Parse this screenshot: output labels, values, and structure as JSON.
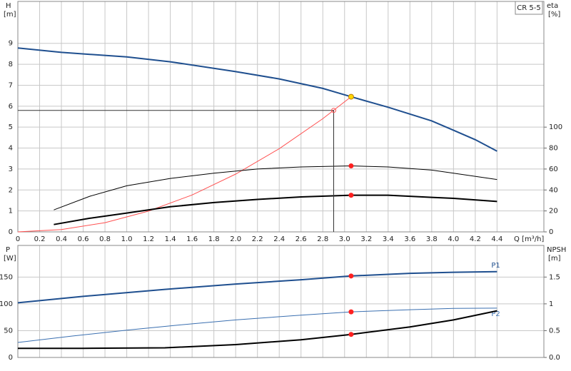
{
  "chart_data": [
    {
      "type": "line",
      "title": "CR 5-5",
      "xlabel": "Q [m³/h]",
      "ylabel": "H",
      "yunit": "[m]",
      "y2label": "eta",
      "y2unit": "[%]",
      "xlim": [
        0,
        4.83
      ],
      "ylim": [
        0,
        11
      ],
      "y2lim": [
        0,
        220
      ],
      "grid": true,
      "xtick_labels": true,
      "xticks": [
        0,
        0.2,
        0.4,
        0.6,
        0.8,
        {
          "value": 1,
          "label": "1.0"
        },
        1.2,
        1.4,
        1.6,
        1.8,
        {
          "value": 2,
          "label": "2.0"
        },
        2.2,
        2.4,
        2.6,
        2.8,
        {
          "value": 3,
          "label": "3.0"
        },
        3.2,
        3.4,
        3.6,
        3.8,
        {
          "value": 4,
          "label": "4.0"
        },
        4.2,
        4.4
      ],
      "yticks": [
        0,
        1,
        2,
        3,
        4,
        5,
        6,
        7,
        8,
        9
      ],
      "y2ticks": [
        0,
        20,
        40,
        60,
        80,
        100
      ],
      "series": [
        {
          "color": "#1f4f8f",
          "line_width": 2,
          "axis": "y",
          "x": [
            0,
            0.4,
            1.0,
            1.4,
            2.0,
            2.4,
            2.8,
            3.06,
            3.4,
            3.8,
            4.0,
            4.2,
            4.4
          ],
          "values": [
            8.78,
            8.57,
            8.35,
            8.12,
            7.65,
            7.3,
            6.85,
            6.45,
            5.95,
            5.3,
            4.85,
            4.4,
            3.85
          ]
        },
        {
          "color": "#ff5050",
          "line_width": 1,
          "axis": "y",
          "x": [
            0,
            0.4,
            0.8,
            1.2,
            1.6,
            2.0,
            2.4,
            2.8,
            3.06
          ],
          "values": [
            0,
            0.11,
            0.44,
            0.99,
            1.76,
            2.76,
            3.97,
            5.4,
            6.45
          ]
        },
        {
          "color": "#000000",
          "line_width": 1,
          "axis": "y2",
          "x": [
            0.33,
            0.66,
            1.0,
            1.4,
            1.8,
            2.2,
            2.6,
            3.06,
            3.4,
            3.8,
            4.0,
            4.4
          ],
          "values": [
            21,
            34,
            44,
            51,
            56,
            60,
            62,
            63,
            62,
            59,
            56,
            50
          ]
        },
        {
          "color": "#000000",
          "line_width": 2,
          "axis": "y2",
          "x": [
            0.33,
            0.66,
            1.0,
            1.4,
            1.8,
            2.2,
            2.6,
            3.06,
            3.4,
            3.8,
            4.0,
            4.4
          ],
          "values": [
            7,
            13,
            18,
            24,
            28,
            31,
            33.4,
            35,
            35,
            33,
            32,
            29
          ]
        }
      ],
      "points": [
        {
          "x": 2.9,
          "y": 5.8,
          "color": "#ff5050",
          "axis": "y",
          "marker": "open",
          "guides": true
        },
        {
          "x": 3.06,
          "y": 6.45,
          "color": "#ffd700",
          "axis": "y",
          "marker": "filled"
        },
        {
          "x": 3.06,
          "y": 63,
          "color": "#ff2020",
          "axis": "y2",
          "marker": "filled"
        },
        {
          "x": 3.06,
          "y": 35,
          "color": "#ff2020",
          "axis": "y2",
          "marker": "filled"
        }
      ]
    },
    {
      "type": "line",
      "ylabel": "P",
      "yunit": "[W]",
      "y2label": "NPSH",
      "y2unit": "[m]",
      "xlim": [
        0,
        4.83
      ],
      "ylim": [
        0,
        209
      ],
      "y2lim": [
        0,
        2.09
      ],
      "grid": true,
      "xtick_labels": false,
      "xticks": [
        0,
        0.2,
        0.4,
        0.6,
        0.8,
        1,
        1.2,
        1.4,
        1.6,
        1.8,
        2,
        2.2,
        2.4,
        2.6,
        2.8,
        3,
        3.2,
        3.4,
        3.6,
        3.8,
        4,
        4.2,
        4.4
      ],
      "yticks": [
        0,
        50,
        100,
        150
      ],
      "y2ticks": [
        {
          "value": 0,
          "label": "0.0"
        },
        0.5,
        1,
        1.5
      ],
      "series": [
        {
          "name": "P1",
          "color": "#1f4f8f",
          "line_width": 2,
          "axis": "y",
          "x": [
            0,
            0.6,
            1.35,
            2.0,
            2.6,
            3.06,
            3.6,
            4.0,
            4.4
          ],
          "values": [
            102,
            114,
            127,
            137,
            145,
            152,
            157,
            159,
            160
          ]
        },
        {
          "name": "P2",
          "color": "#3a6fb0",
          "line_width": 1,
          "axis": "y",
          "x": [
            0,
            0.5,
            1.0,
            1.5,
            2.0,
            2.6,
            3.06,
            3.6,
            4.0,
            4.4
          ],
          "values": [
            28,
            40,
            51,
            61,
            70,
            79,
            85,
            89,
            91.5,
            92
          ]
        },
        {
          "color": "#000000",
          "line_width": 2,
          "axis": "y2",
          "x": [
            0,
            0.6,
            1.35,
            2.0,
            2.6,
            3.06,
            3.6,
            4.0,
            4.4
          ],
          "values": [
            0.17,
            0.17,
            0.18,
            0.24,
            0.33,
            0.43,
            0.57,
            0.7,
            0.87
          ]
        }
      ],
      "points": [
        {
          "x": 3.06,
          "y": 152,
          "color": "#ff2020",
          "axis": "y",
          "marker": "filled"
        },
        {
          "x": 3.06,
          "y": 85,
          "color": "#ff2020",
          "axis": "y",
          "marker": "filled"
        },
        {
          "x": 3.06,
          "y": 0.43,
          "color": "#ff2020",
          "axis": "y2",
          "marker": "filled"
        }
      ]
    }
  ]
}
